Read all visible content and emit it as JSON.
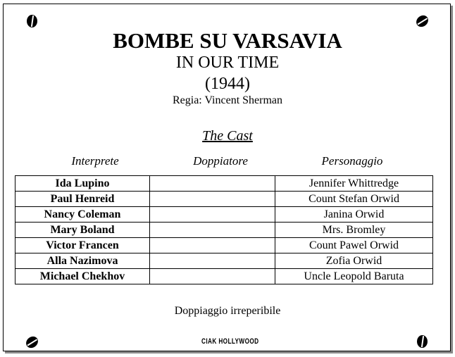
{
  "title": "BOMBE SU VARSAVIA",
  "subtitle": "IN OUR TIME",
  "year": "(1944)",
  "director": "Regia: Vincent Sherman",
  "cast_heading": "The Cast",
  "columns": [
    "Interprete",
    "Doppiatore",
    "Personaggio"
  ],
  "rows": [
    {
      "actor": "Ida Lupino",
      "dubber": "",
      "role": "Jennifer Whittredge"
    },
    {
      "actor": "Paul Henreid",
      "dubber": "",
      "role": "Count Stefan Orwid"
    },
    {
      "actor": "Nancy Coleman",
      "dubber": "",
      "role": "Janina Orwid"
    },
    {
      "actor": "Mary Boland",
      "dubber": "",
      "role": "Mrs. Bromley"
    },
    {
      "actor": "Victor Francen",
      "dubber": "",
      "role": "Count Pawel Orwid"
    },
    {
      "actor": "Alla Nazimova",
      "dubber": "",
      "role": "Zofia Orwid"
    },
    {
      "actor": "Michael Chekhov",
      "dubber": "",
      "role": "Uncle Leopold Baruta"
    }
  ],
  "note": "Doppiaggio irreperibile",
  "logo": "CIAK HOLLYWOOD"
}
